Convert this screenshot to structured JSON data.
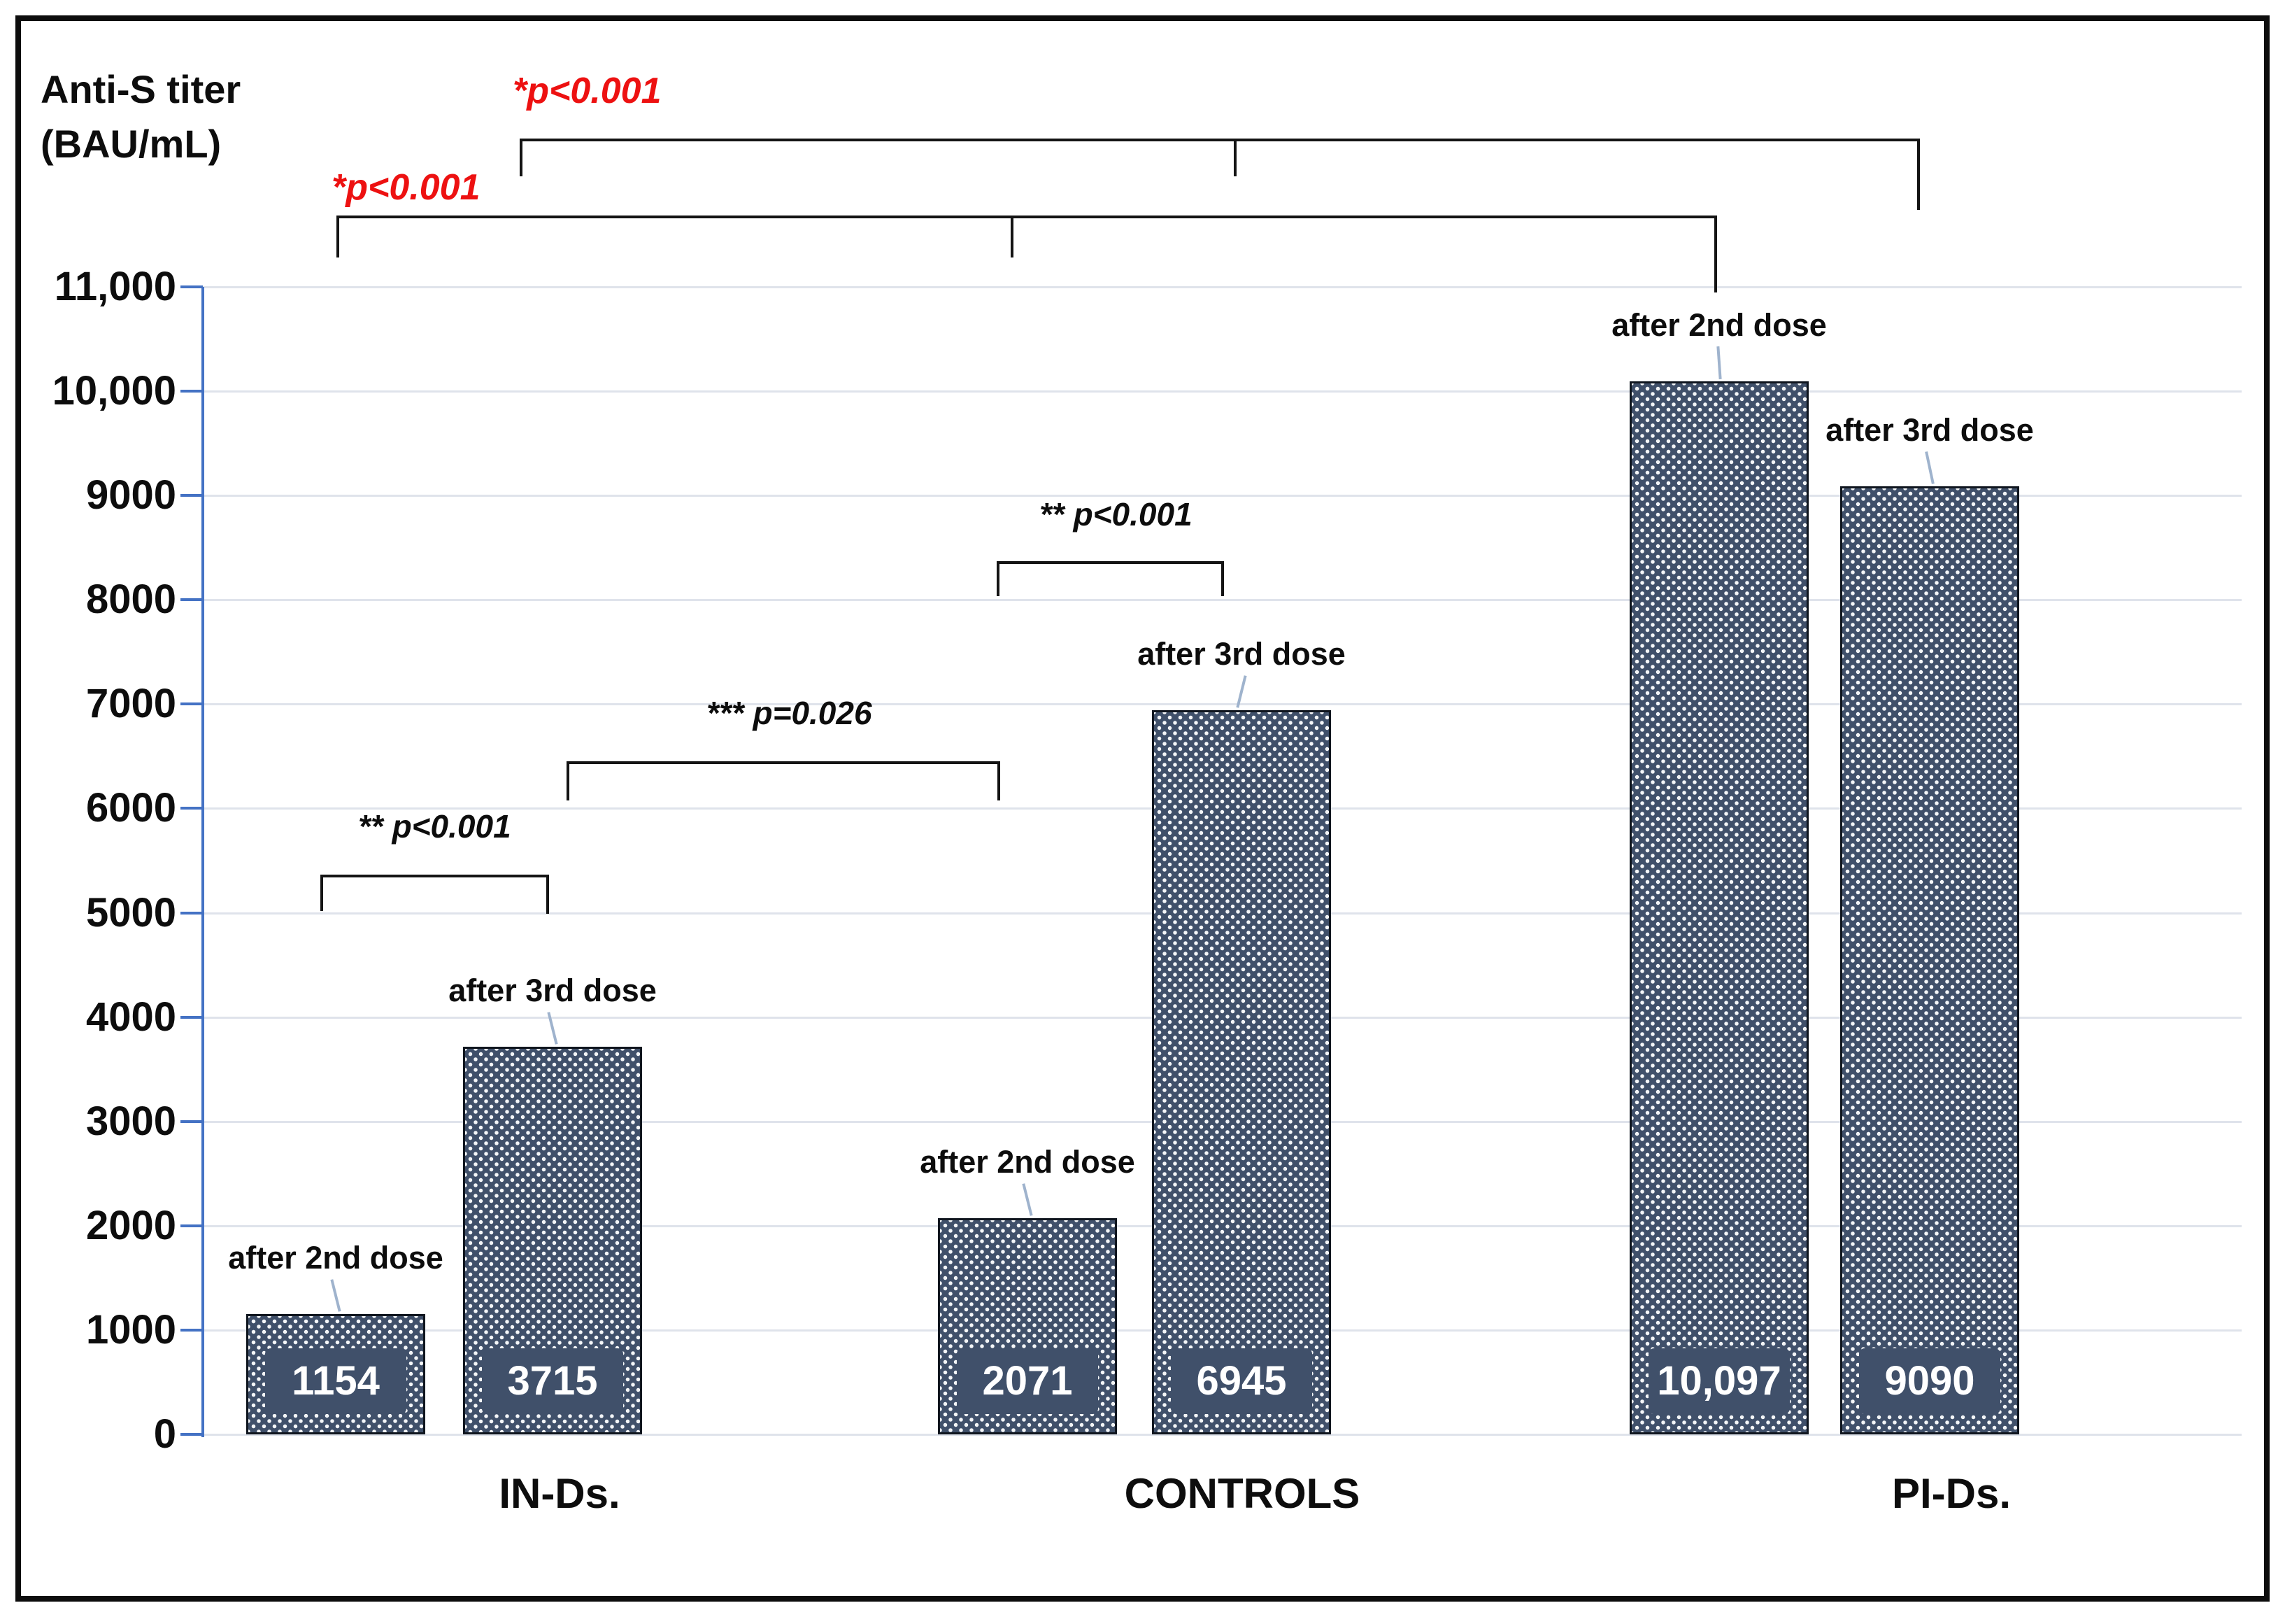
{
  "figure": {
    "axis_title_line1": "Anti-S titer",
    "axis_title_line2": "(BAU/mL)"
  },
  "chart_data": {
    "type": "bar",
    "title": "",
    "ylabel": "Anti-S titer (BAU/mL)",
    "xlabel": "",
    "ymin": 0,
    "ymax": 11000,
    "grid": true,
    "y_tick_labels": [
      "11,000",
      "10,000",
      "9000",
      "8000",
      "7000",
      "6000",
      "5000",
      "4000",
      "3000",
      "2000",
      "1000",
      "0"
    ],
    "categories": [
      "IN-Ds.",
      "CONTROLS",
      "PI-Ds."
    ],
    "series": [
      {
        "name": "after 2nd dose",
        "values": [
          1154,
          2071,
          10097
        ]
      },
      {
        "name": "after 3rd dose",
        "values": [
          3715,
          6945,
          9090
        ]
      }
    ],
    "groups": [
      {
        "label": "IN-Ds.",
        "bars": [
          {
            "dose": "after 2nd dose",
            "value": 1154,
            "value_label": "1154"
          },
          {
            "dose": "after 3rd dose",
            "value": 3715,
            "value_label": "3715"
          }
        ]
      },
      {
        "label": "CONTROLS",
        "bars": [
          {
            "dose": "after 2nd dose",
            "value": 2071,
            "value_label": "2071"
          },
          {
            "dose": "after 3rd dose",
            "value": 6945,
            "value_label": "6945"
          }
        ]
      },
      {
        "label": "PI-Ds.",
        "bars": [
          {
            "dose": "after 2nd dose",
            "value": 10097,
            "value_label": "10,097"
          },
          {
            "dose": "after 3rd dose",
            "value": 9090,
            "value_label": "9090"
          }
        ]
      }
    ],
    "annotations": [
      {
        "label": "*p<0.001",
        "color": "#ed1111",
        "compares": [
          "IN-Ds. after 3rd dose",
          "CONTROLS after 3rd dose",
          "PI-Ds. after 3rd dose"
        ]
      },
      {
        "label": "*p<0.001",
        "color": "#ed1111",
        "compares": [
          "IN-Ds. after 2nd dose",
          "CONTROLS after 2nd dose",
          "PI-Ds. after 2nd dose"
        ]
      },
      {
        "label": "** p<0.001",
        "color": "#141414",
        "compares": [
          "IN-Ds. after 2nd dose",
          "IN-Ds. after 3rd dose"
        ]
      },
      {
        "label": "*** p=0.026",
        "color": "#141414",
        "compares": [
          "IN-Ds. after 3rd dose",
          "CONTROLS after 2nd dose"
        ]
      },
      {
        "label": "** p<0.001",
        "color": "#141414",
        "compares": [
          "CONTROLS after 2nd dose",
          "CONTROLS after 3rd dose"
        ]
      }
    ],
    "colors": {
      "bar_fill": "#40506a",
      "bar_border": "#10161f",
      "bar_dot": "#f4f6f8",
      "axis_blue": "#4472c4",
      "gridline": "#dfe3eb",
      "leader_line": "#9fb3cd",
      "annotation_red": "#ed1111",
      "text": "#0d0d0d"
    }
  }
}
